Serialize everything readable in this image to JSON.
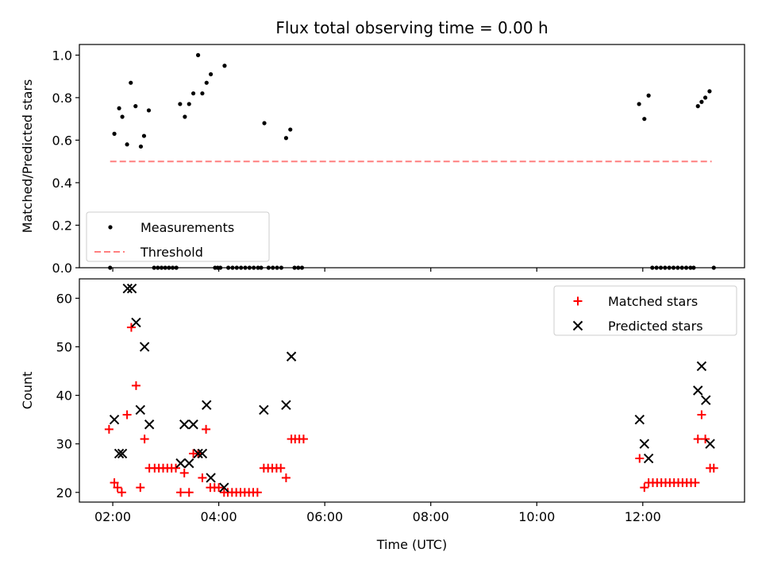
{
  "chart_data": {
    "title": "Flux total observing time = 0.00 h",
    "xlabel": "Time (UTC)",
    "x_ticks": [
      "02:00",
      "04:00",
      "06:00",
      "08:00",
      "10:00",
      "12:00"
    ],
    "x_tick_values": [
      2,
      4,
      6,
      8,
      10,
      12
    ],
    "xlim": [
      1.37,
      13.92
    ],
    "panels": [
      {
        "type": "scatter",
        "ylabel": "Matched/Predicted stars",
        "ylim": [
          0,
          1.05
        ],
        "y_ticks": [
          "0.0",
          "0.2",
          "0.4",
          "0.6",
          "0.8",
          "1.0"
        ],
        "y_tick_values": [
          0,
          0.2,
          0.4,
          0.6,
          0.8,
          1.0
        ],
        "legend_position": "lower-left",
        "series": [
          {
            "name": "Measurements",
            "marker": "dot",
            "color": "#000000",
            "points": [
              [
                1.95,
                0
              ],
              [
                2.03,
                0.63
              ],
              [
                2.12,
                0.75
              ],
              [
                2.18,
                0.71
              ],
              [
                2.27,
                0.58
              ],
              [
                2.34,
                0.87
              ],
              [
                2.43,
                0.76
              ],
              [
                2.53,
                0.57
              ],
              [
                2.59,
                0.62
              ],
              [
                2.68,
                0.74
              ],
              [
                2.78,
                0
              ],
              [
                2.85,
                0
              ],
              [
                2.92,
                0
              ],
              [
                2.99,
                0
              ],
              [
                3.06,
                0
              ],
              [
                3.13,
                0
              ],
              [
                3.2,
                0
              ],
              [
                3.27,
                0.77
              ],
              [
                3.36,
                0.71
              ],
              [
                3.44,
                0.77
              ],
              [
                3.52,
                0.82
              ],
              [
                3.61,
                1.0
              ],
              [
                3.69,
                0.82
              ],
              [
                3.77,
                0.87
              ],
              [
                3.85,
                0.91
              ],
              [
                3.93,
                0
              ],
              [
                3.98,
                0
              ],
              [
                4.03,
                0
              ],
              [
                4.11,
                0.95
              ],
              [
                4.18,
                0
              ],
              [
                4.26,
                0
              ],
              [
                4.34,
                0
              ],
              [
                4.42,
                0
              ],
              [
                4.5,
                0
              ],
              [
                4.58,
                0
              ],
              [
                4.66,
                0
              ],
              [
                4.74,
                0
              ],
              [
                4.8,
                0
              ],
              [
                4.86,
                0.68
              ],
              [
                4.94,
                0
              ],
              [
                5.02,
                0
              ],
              [
                5.1,
                0
              ],
              [
                5.18,
                0
              ],
              [
                5.27,
                0.61
              ],
              [
                5.35,
                0.65
              ],
              [
                5.43,
                0
              ],
              [
                5.5,
                0
              ],
              [
                5.57,
                0
              ],
              [
                11.93,
                0.77
              ],
              [
                12.03,
                0.7
              ],
              [
                12.11,
                0.81
              ],
              [
                12.18,
                0
              ],
              [
                12.26,
                0
              ],
              [
                12.34,
                0
              ],
              [
                12.42,
                0
              ],
              [
                12.5,
                0
              ],
              [
                12.58,
                0
              ],
              [
                12.66,
                0
              ],
              [
                12.74,
                0
              ],
              [
                12.82,
                0
              ],
              [
                12.9,
                0
              ],
              [
                12.96,
                0
              ],
              [
                13.04,
                0.76
              ],
              [
                13.11,
                0.78
              ],
              [
                13.18,
                0.8
              ],
              [
                13.26,
                0.83
              ],
              [
                13.34,
                0
              ]
            ]
          },
          {
            "name": "Threshold",
            "type": "line",
            "style": "dashed",
            "color": "#ff7f7f",
            "points": [
              [
                1.95,
                0.5
              ],
              [
                13.3,
                0.5
              ]
            ]
          }
        ]
      },
      {
        "type": "scatter",
        "ylabel": "Count",
        "ylim": [
          18,
          64
        ],
        "y_ticks": [
          "20",
          "30",
          "40",
          "50",
          "60"
        ],
        "y_tick_values": [
          20,
          30,
          40,
          50,
          60
        ],
        "legend_position": "upper-right",
        "series": [
          {
            "name": "Matched stars",
            "marker": "plus",
            "color": "#ff0000",
            "points": [
              [
                1.93,
                33
              ],
              [
                2.03,
                22
              ],
              [
                2.09,
                21
              ],
              [
                2.17,
                20
              ],
              [
                2.27,
                36
              ],
              [
                2.35,
                54
              ],
              [
                2.44,
                42
              ],
              [
                2.52,
                21
              ],
              [
                2.6,
                31
              ],
              [
                2.69,
                25
              ],
              [
                2.79,
                25
              ],
              [
                2.87,
                25
              ],
              [
                2.95,
                25
              ],
              [
                3.03,
                25
              ],
              [
                3.11,
                25
              ],
              [
                3.19,
                25
              ],
              [
                3.28,
                20
              ],
              [
                3.35,
                24
              ],
              [
                3.44,
                20
              ],
              [
                3.52,
                28
              ],
              [
                3.61,
                28
              ],
              [
                3.69,
                23
              ],
              [
                3.76,
                33
              ],
              [
                3.84,
                21
              ],
              [
                3.92,
                21
              ],
              [
                4.0,
                21
              ],
              [
                4.1,
                20
              ],
              [
                4.17,
                20
              ],
              [
                4.25,
                20
              ],
              [
                4.33,
                20
              ],
              [
                4.41,
                20
              ],
              [
                4.49,
                20
              ],
              [
                4.57,
                20
              ],
              [
                4.65,
                20
              ],
              [
                4.73,
                20
              ],
              [
                4.85,
                25
              ],
              [
                4.93,
                25
              ],
              [
                5.01,
                25
              ],
              [
                5.09,
                25
              ],
              [
                5.17,
                25
              ],
              [
                5.27,
                23
              ],
              [
                5.37,
                31
              ],
              [
                5.44,
                31
              ],
              [
                5.52,
                31
              ],
              [
                5.6,
                31
              ],
              [
                11.94,
                27
              ],
              [
                12.03,
                21
              ],
              [
                12.11,
                22
              ],
              [
                12.19,
                22
              ],
              [
                12.27,
                22
              ],
              [
                12.35,
                22
              ],
              [
                12.43,
                22
              ],
              [
                12.51,
                22
              ],
              [
                12.59,
                22
              ],
              [
                12.67,
                22
              ],
              [
                12.75,
                22
              ],
              [
                12.83,
                22
              ],
              [
                12.91,
                22
              ],
              [
                12.99,
                22
              ],
              [
                13.04,
                31
              ],
              [
                13.11,
                36
              ],
              [
                13.18,
                31
              ],
              [
                13.27,
                25
              ],
              [
                13.34,
                25
              ]
            ]
          },
          {
            "name": "Predicted stars",
            "marker": "x",
            "color": "#000000",
            "points": [
              [
                2.03,
                35
              ],
              [
                2.12,
                28
              ],
              [
                2.18,
                28
              ],
              [
                2.28,
                62
              ],
              [
                2.36,
                62
              ],
              [
                2.44,
                55
              ],
              [
                2.52,
                37
              ],
              [
                2.6,
                50
              ],
              [
                2.69,
                34
              ],
              [
                3.28,
                26
              ],
              [
                3.35,
                34
              ],
              [
                3.44,
                26
              ],
              [
                3.52,
                34
              ],
              [
                3.61,
                28
              ],
              [
                3.69,
                28
              ],
              [
                3.77,
                38
              ],
              [
                3.85,
                23
              ],
              [
                4.1,
                21
              ],
              [
                4.85,
                37
              ],
              [
                5.27,
                38
              ],
              [
                5.37,
                48
              ],
              [
                11.94,
                35
              ],
              [
                12.03,
                30
              ],
              [
                12.11,
                27
              ],
              [
                13.04,
                41
              ],
              [
                13.11,
                46
              ],
              [
                13.19,
                39
              ],
              [
                13.27,
                30
              ]
            ]
          }
        ]
      }
    ]
  }
}
